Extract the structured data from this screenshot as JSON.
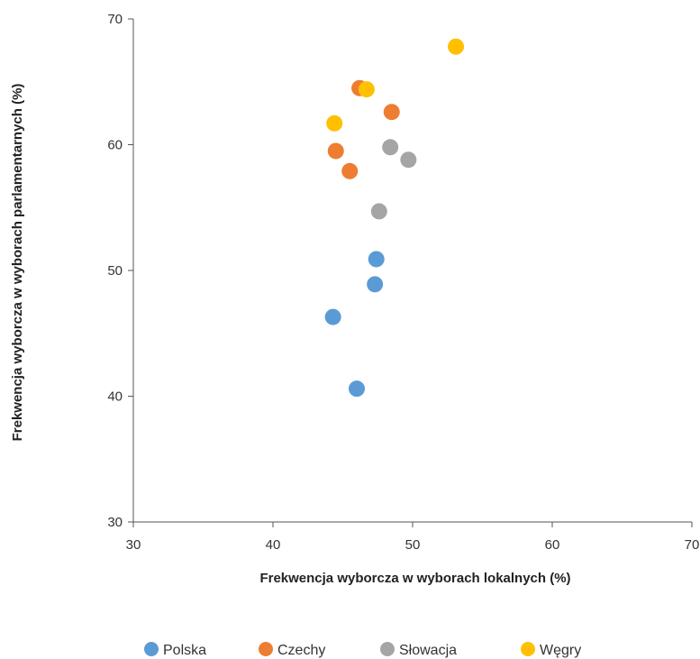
{
  "chart_data": {
    "type": "scatter",
    "title": "",
    "xlabel": "Frekwencja wyborcza w wyborach lokalnych (%)",
    "ylabel": "Frekwencja wyborcza w wyborach parlamentarnych (%)",
    "xlim": [
      30,
      70
    ],
    "ylim": [
      30,
      70
    ],
    "xticks": [
      30,
      40,
      50,
      60,
      70
    ],
    "yticks": [
      30,
      40,
      50,
      60,
      70
    ],
    "grid": false,
    "legend_position": "bottom",
    "series": [
      {
        "name": "Polska",
        "color": "#5B9BD5",
        "points": [
          [
            44.3,
            46.3
          ],
          [
            46.0,
            40.6
          ],
          [
            47.3,
            48.9
          ],
          [
            47.4,
            50.9
          ]
        ]
      },
      {
        "name": "Czechy",
        "color": "#ED7D31",
        "points": [
          [
            44.5,
            59.5
          ],
          [
            45.5,
            57.9
          ],
          [
            46.2,
            64.5
          ],
          [
            48.5,
            62.6
          ]
        ]
      },
      {
        "name": "Słowacja",
        "color": "#A5A5A5",
        "points": [
          [
            47.6,
            54.7
          ],
          [
            48.4,
            59.8
          ],
          [
            49.7,
            58.8
          ]
        ]
      },
      {
        "name": "Węgry",
        "color": "#FFC000",
        "points": [
          [
            44.4,
            61.7
          ],
          [
            46.7,
            64.4
          ],
          [
            53.1,
            67.8
          ]
        ]
      }
    ]
  }
}
